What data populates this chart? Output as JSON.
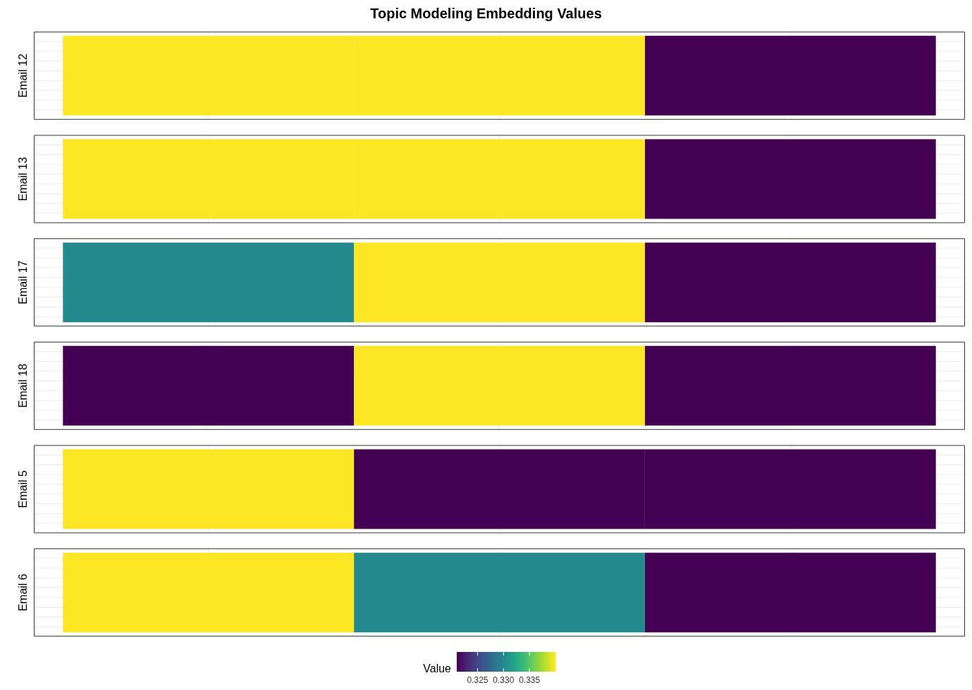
{
  "chart_data": {
    "type": "heatmap",
    "title": "Topic Modeling Embedding Values",
    "categories": [
      null,
      null,
      null
    ],
    "y_categories": [
      "Email 12",
      "Email 13",
      "Email 17",
      "Email 18",
      "Email 5",
      "Email 6"
    ],
    "cells": [
      [
        0.34,
        0.34,
        0.321
      ],
      [
        0.34,
        0.34,
        0.321
      ],
      [
        0.33,
        0.34,
        0.321
      ],
      [
        0.321,
        0.34,
        0.321
      ],
      [
        0.34,
        0.321,
        0.321
      ],
      [
        0.34,
        0.33,
        0.321
      ]
    ],
    "clim": [
      0.321,
      0.34
    ],
    "grid": true,
    "clabel": "Value",
    "cticks": [
      0.325,
      {
        "value": 0.33,
        "label": "0.330"
      },
      0.335
    ]
  }
}
